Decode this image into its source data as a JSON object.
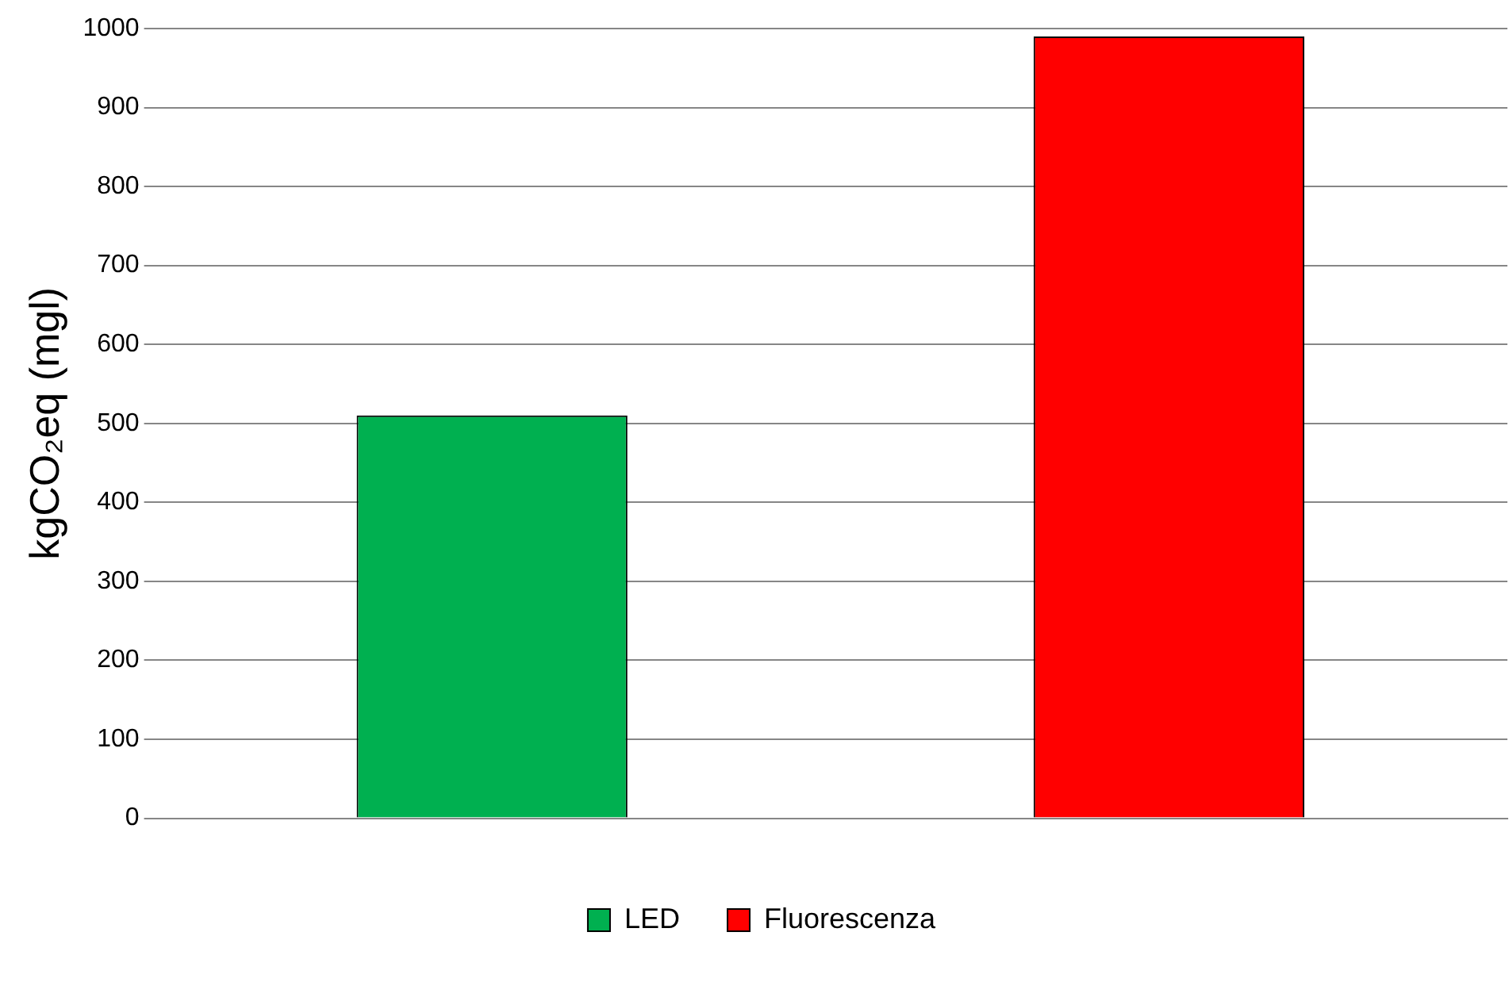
{
  "chart_data": {
    "type": "bar",
    "ylabel": "kgCO₂eq (mgl)",
    "categories": [
      null
    ],
    "series": [
      {
        "name": "LED",
        "color": "#00b050",
        "values": [
          510
        ]
      },
      {
        "name": "Fluorescenza",
        "color": "#ff0000",
        "values": [
          990
        ]
      }
    ],
    "ylim": [
      0,
      1000
    ],
    "yticks": [
      0,
      100,
      200,
      300,
      400,
      500,
      600,
      700,
      800,
      900,
      1000
    ],
    "grid": "y",
    "legend": "bottom"
  }
}
